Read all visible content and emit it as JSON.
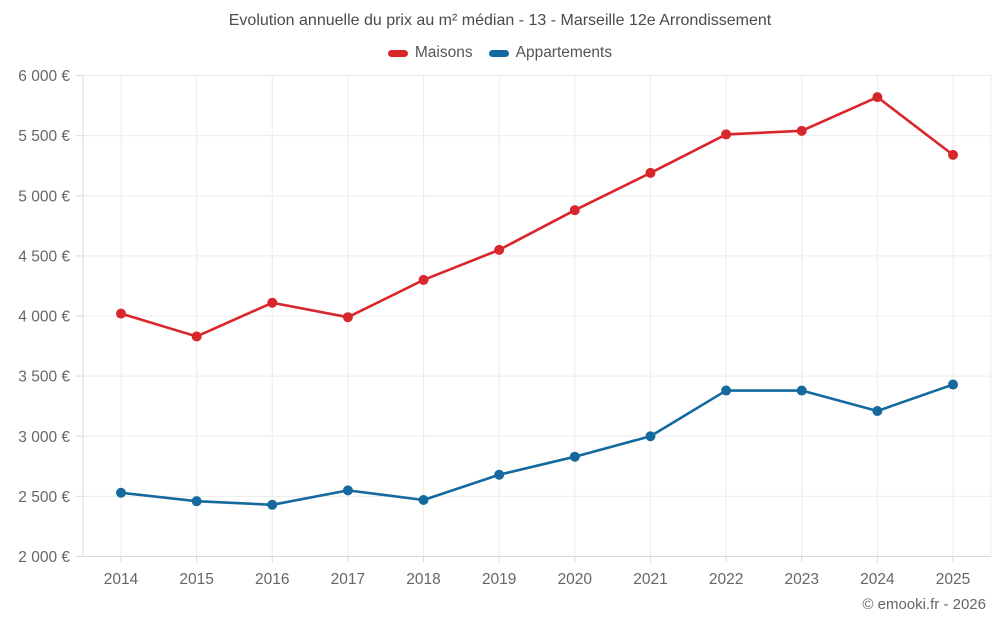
{
  "page": {
    "copyright": "© emooki.fr - 2026"
  },
  "chart_data": {
    "type": "line",
    "title": "Evolution annuelle du prix au m² médian - 13 - Marseille 12e Arrondissement",
    "categories": [
      "2014",
      "2015",
      "2016",
      "2017",
      "2018",
      "2019",
      "2020",
      "2021",
      "2022",
      "2023",
      "2024",
      "2025"
    ],
    "series": [
      {
        "name": "Maisons",
        "color": "#d9262b",
        "values": [
          4020,
          3830,
          4110,
          3990,
          4300,
          4550,
          4880,
          5190,
          5510,
          5540,
          5820,
          5340
        ]
      },
      {
        "name": "Appartements",
        "color": "#15699f",
        "values": [
          2530,
          2460,
          2430,
          2550,
          2470,
          2680,
          2830,
          3000,
          3380,
          3380,
          3210,
          3430
        ]
      }
    ],
    "ylabel": "",
    "xlabel": "",
    "ylim": [
      2000,
      6000
    ],
    "ytick_step": 500,
    "ytick_suffix": " €",
    "grid": true,
    "legend_position": "top",
    "marker": "circle"
  }
}
